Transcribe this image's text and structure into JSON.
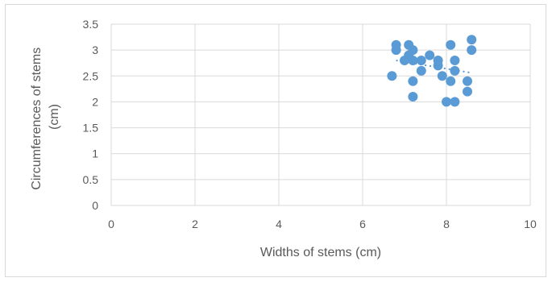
{
  "chart_data": {
    "type": "scatter",
    "title": "",
    "xlabel": "Widths of stems (cm)",
    "ylabel_lines": [
      "Circumferences of stems",
      "(cm)"
    ],
    "xlim": [
      0,
      10
    ],
    "ylim": [
      0,
      3.5
    ],
    "x_ticks": [
      0,
      2,
      4,
      6,
      8,
      10
    ],
    "y_ticks": [
      0,
      0.5,
      1,
      1.5,
      2,
      2.5,
      3,
      3.5
    ],
    "x_tick_labels": [
      "0",
      "2",
      "4",
      "6",
      "8",
      "10"
    ],
    "y_tick_labels": [
      "0",
      "0.5",
      "1",
      "1.5",
      "2",
      "2.5",
      "3",
      "3.5"
    ],
    "grid": true,
    "marker_color": "#5b9bd5",
    "trendline": {
      "style": "dotted",
      "color": "#5b9bd5",
      "from": [
        6.8,
        2.8
      ],
      "to": [
        8.6,
        2.56
      ]
    },
    "points": [
      {
        "x": 6.7,
        "y": 2.5
      },
      {
        "x": 6.8,
        "y": 3.1
      },
      {
        "x": 6.8,
        "y": 3.0
      },
      {
        "x": 7.0,
        "y": 2.8
      },
      {
        "x": 7.1,
        "y": 3.1
      },
      {
        "x": 7.1,
        "y": 2.9
      },
      {
        "x": 7.2,
        "y": 3.0
      },
      {
        "x": 7.2,
        "y": 2.8
      },
      {
        "x": 7.2,
        "y": 2.4
      },
      {
        "x": 7.2,
        "y": 2.1
      },
      {
        "x": 7.4,
        "y": 2.8
      },
      {
        "x": 7.4,
        "y": 2.6
      },
      {
        "x": 7.6,
        "y": 2.9
      },
      {
        "x": 7.8,
        "y": 2.8
      },
      {
        "x": 7.8,
        "y": 2.7
      },
      {
        "x": 7.9,
        "y": 2.5
      },
      {
        "x": 8.0,
        "y": 2.0
      },
      {
        "x": 8.1,
        "y": 3.1
      },
      {
        "x": 8.1,
        "y": 2.4
      },
      {
        "x": 8.2,
        "y": 2.8
      },
      {
        "x": 8.2,
        "y": 2.6
      },
      {
        "x": 8.2,
        "y": 2.0
      },
      {
        "x": 8.5,
        "y": 2.4
      },
      {
        "x": 8.5,
        "y": 2.2
      },
      {
        "x": 8.6,
        "y": 3.2
      },
      {
        "x": 8.6,
        "y": 3.0
      }
    ]
  }
}
